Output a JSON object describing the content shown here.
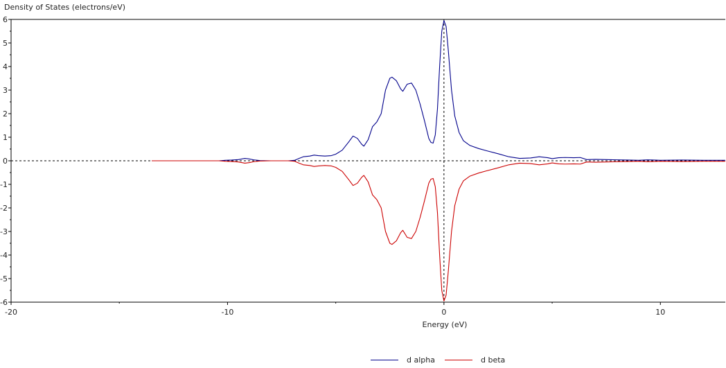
{
  "chart_data": {
    "type": "line",
    "title": "",
    "ylabel": "Density of States (electrons/eV)",
    "xlabel": "Energy (eV)",
    "xlim": [
      -20,
      13
    ],
    "ylim": [
      -6,
      6
    ],
    "x_ticks": [
      -20,
      -10,
      0,
      10
    ],
    "y_ticks": [
      6,
      5,
      4,
      3,
      2,
      1,
      0,
      -1,
      -2,
      -3,
      -4,
      -5,
      -6
    ],
    "grid": false,
    "legend_position": "bottom-center",
    "reference_lines": {
      "horizontal_zero": "dashed",
      "vertical_zero": "dashed"
    },
    "series": [
      {
        "name": "d alpha",
        "color": "#00008b",
        "points": [
          [
            -13.5,
            0
          ],
          [
            -10.4,
            0
          ],
          [
            -10.1,
            0.02
          ],
          [
            -9.8,
            0.03
          ],
          [
            -9.5,
            0.05
          ],
          [
            -9.2,
            0.1
          ],
          [
            -9.0,
            0.08
          ],
          [
            -8.8,
            0.04
          ],
          [
            -8.5,
            0.01
          ],
          [
            -8.0,
            0
          ],
          [
            -7.2,
            0
          ],
          [
            -6.9,
            0.02
          ],
          [
            -6.7,
            0.1
          ],
          [
            -6.5,
            0.17
          ],
          [
            -6.2,
            0.2
          ],
          [
            -6.0,
            0.24
          ],
          [
            -5.8,
            0.22
          ],
          [
            -5.5,
            0.2
          ],
          [
            -5.2,
            0.22
          ],
          [
            -5.0,
            0.28
          ],
          [
            -4.7,
            0.45
          ],
          [
            -4.4,
            0.8
          ],
          [
            -4.2,
            1.05
          ],
          [
            -4.0,
            0.95
          ],
          [
            -3.8,
            0.7
          ],
          [
            -3.7,
            0.62
          ],
          [
            -3.5,
            0.9
          ],
          [
            -3.3,
            1.45
          ],
          [
            -3.1,
            1.65
          ],
          [
            -2.9,
            2.0
          ],
          [
            -2.7,
            3.0
          ],
          [
            -2.5,
            3.5
          ],
          [
            -2.4,
            3.55
          ],
          [
            -2.2,
            3.4
          ],
          [
            -2.0,
            3.05
          ],
          [
            -1.9,
            2.95
          ],
          [
            -1.7,
            3.25
          ],
          [
            -1.5,
            3.3
          ],
          [
            -1.3,
            3.0
          ],
          [
            -1.1,
            2.4
          ],
          [
            -0.9,
            1.7
          ],
          [
            -0.7,
            0.95
          ],
          [
            -0.6,
            0.78
          ],
          [
            -0.5,
            0.75
          ],
          [
            -0.4,
            1.1
          ],
          [
            -0.3,
            2.2
          ],
          [
            -0.2,
            4.0
          ],
          [
            -0.1,
            5.5
          ],
          [
            0.0,
            5.95
          ],
          [
            0.1,
            5.7
          ],
          [
            0.2,
            4.7
          ],
          [
            0.35,
            3.0
          ],
          [
            0.5,
            1.9
          ],
          [
            0.7,
            1.2
          ],
          [
            0.9,
            0.85
          ],
          [
            1.2,
            0.65
          ],
          [
            1.6,
            0.52
          ],
          [
            2.0,
            0.42
          ],
          [
            2.5,
            0.3
          ],
          [
            3.0,
            0.17
          ],
          [
            3.5,
            0.1
          ],
          [
            4.0,
            0.12
          ],
          [
            4.4,
            0.17
          ],
          [
            4.8,
            0.13
          ],
          [
            5.0,
            0.09
          ],
          [
            5.3,
            0.13
          ],
          [
            5.6,
            0.14
          ],
          [
            6.0,
            0.13
          ],
          [
            6.3,
            0.14
          ],
          [
            6.6,
            0.05
          ],
          [
            7.0,
            0.06
          ],
          [
            7.5,
            0.05
          ],
          [
            8.0,
            0.04
          ],
          [
            8.5,
            0.03
          ],
          [
            9.0,
            0.02
          ],
          [
            9.4,
            0.04
          ],
          [
            9.7,
            0.03
          ],
          [
            10.0,
            0.02
          ],
          [
            11.0,
            0.03
          ],
          [
            12.0,
            0.02
          ],
          [
            13.0,
            0.02
          ]
        ]
      },
      {
        "name": "d beta",
        "color": "#cc0000",
        "points": [
          [
            -13.5,
            0
          ],
          [
            -10.4,
            0
          ],
          [
            -10.1,
            -0.02
          ],
          [
            -9.8,
            -0.03
          ],
          [
            -9.5,
            -0.05
          ],
          [
            -9.2,
            -0.1
          ],
          [
            -9.0,
            -0.08
          ],
          [
            -8.8,
            -0.04
          ],
          [
            -8.5,
            -0.01
          ],
          [
            -8.0,
            0
          ],
          [
            -7.2,
            0
          ],
          [
            -6.9,
            -0.02
          ],
          [
            -6.7,
            -0.1
          ],
          [
            -6.5,
            -0.17
          ],
          [
            -6.2,
            -0.2
          ],
          [
            -6.0,
            -0.24
          ],
          [
            -5.8,
            -0.22
          ],
          [
            -5.5,
            -0.2
          ],
          [
            -5.2,
            -0.22
          ],
          [
            -5.0,
            -0.28
          ],
          [
            -4.7,
            -0.45
          ],
          [
            -4.4,
            -0.8
          ],
          [
            -4.2,
            -1.05
          ],
          [
            -4.0,
            -0.95
          ],
          [
            -3.8,
            -0.7
          ],
          [
            -3.7,
            -0.62
          ],
          [
            -3.5,
            -0.9
          ],
          [
            -3.3,
            -1.45
          ],
          [
            -3.1,
            -1.65
          ],
          [
            -2.9,
            -2.0
          ],
          [
            -2.7,
            -3.0
          ],
          [
            -2.5,
            -3.5
          ],
          [
            -2.4,
            -3.55
          ],
          [
            -2.2,
            -3.4
          ],
          [
            -2.0,
            -3.05
          ],
          [
            -1.9,
            -2.95
          ],
          [
            -1.7,
            -3.25
          ],
          [
            -1.5,
            -3.3
          ],
          [
            -1.3,
            -3.0
          ],
          [
            -1.1,
            -2.4
          ],
          [
            -0.9,
            -1.7
          ],
          [
            -0.7,
            -0.95
          ],
          [
            -0.6,
            -0.78
          ],
          [
            -0.5,
            -0.75
          ],
          [
            -0.4,
            -1.1
          ],
          [
            -0.3,
            -2.2
          ],
          [
            -0.2,
            -4.0
          ],
          [
            -0.1,
            -5.5
          ],
          [
            0.0,
            -5.95
          ],
          [
            0.1,
            -5.7
          ],
          [
            0.2,
            -4.7
          ],
          [
            0.35,
            -3.0
          ],
          [
            0.5,
            -1.9
          ],
          [
            0.7,
            -1.2
          ],
          [
            0.9,
            -0.85
          ],
          [
            1.2,
            -0.65
          ],
          [
            1.6,
            -0.52
          ],
          [
            2.0,
            -0.42
          ],
          [
            2.5,
            -0.3
          ],
          [
            3.0,
            -0.17
          ],
          [
            3.5,
            -0.1
          ],
          [
            4.0,
            -0.12
          ],
          [
            4.4,
            -0.17
          ],
          [
            4.8,
            -0.13
          ],
          [
            5.0,
            -0.09
          ],
          [
            5.3,
            -0.13
          ],
          [
            5.6,
            -0.14
          ],
          [
            6.0,
            -0.13
          ],
          [
            6.3,
            -0.14
          ],
          [
            6.6,
            -0.05
          ],
          [
            7.0,
            -0.06
          ],
          [
            7.5,
            -0.05
          ],
          [
            8.0,
            -0.04
          ],
          [
            8.5,
            -0.03
          ],
          [
            9.0,
            -0.02
          ],
          [
            9.4,
            -0.04
          ],
          [
            9.7,
            -0.03
          ],
          [
            10.0,
            -0.02
          ],
          [
            11.0,
            -0.03
          ],
          [
            12.0,
            -0.02
          ],
          [
            13.0,
            -0.02
          ]
        ]
      }
    ]
  }
}
